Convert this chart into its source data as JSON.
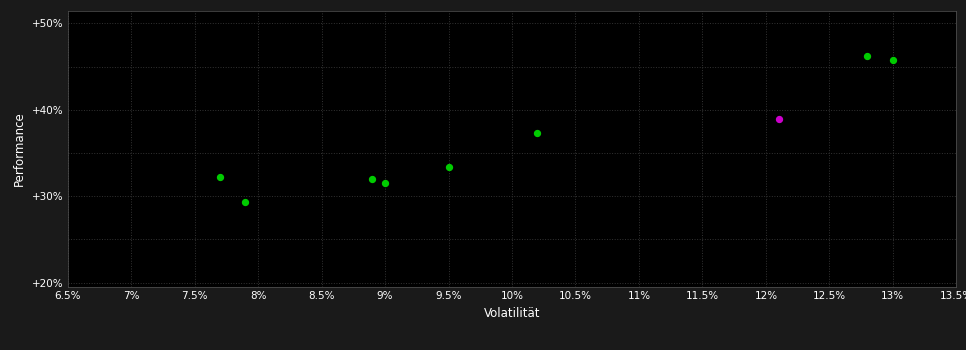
{
  "background_color": "#1a1a1a",
  "plot_bg_color": "#000000",
  "grid_color": "#333333",
  "grid_linestyle": ":",
  "xlabel": "Volatilität",
  "ylabel": "Performance",
  "xlabel_color": "#ffffff",
  "ylabel_color": "#ffffff",
  "tick_color": "#ffffff",
  "xlim": [
    0.065,
    0.135
  ],
  "ylim": [
    0.195,
    0.515
  ],
  "xticks": [
    0.065,
    0.07,
    0.075,
    0.08,
    0.085,
    0.09,
    0.095,
    0.1,
    0.105,
    0.11,
    0.115,
    0.12,
    0.125,
    0.13,
    0.135
  ],
  "yticks": [
    0.2,
    0.25,
    0.3,
    0.35,
    0.4,
    0.45,
    0.5
  ],
  "ytick_labels": [
    "+20%",
    "",
    "+30%",
    "",
    "+40%",
    "",
    "+50%"
  ],
  "xtick_labels": [
    "6.5%",
    "7%",
    "7.5%",
    "8%",
    "8.5%",
    "9%",
    "9.5%",
    "10%",
    "10.5%",
    "11%",
    "11.5%",
    "12%",
    "12.5%",
    "13%",
    "13.5%"
  ],
  "green_points": [
    [
      0.077,
      0.322
    ],
    [
      0.079,
      0.293
    ],
    [
      0.089,
      0.32
    ],
    [
      0.09,
      0.315
    ],
    [
      0.095,
      0.334
    ],
    [
      0.102,
      0.373
    ],
    [
      0.128,
      0.462
    ],
    [
      0.13,
      0.458
    ]
  ],
  "magenta_points": [
    [
      0.121,
      0.39
    ]
  ],
  "point_size": 18,
  "point_marker": "o"
}
